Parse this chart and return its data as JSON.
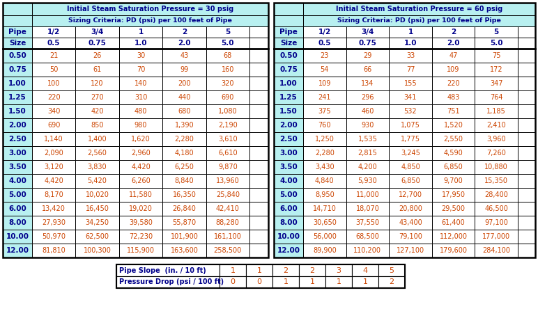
{
  "title_30": "Initial Steam Saturation Pressure = 30 psig",
  "title_60": "Initial Steam Saturation Pressure = 60 psig",
  "subtitle": "Sizing Criteria: PD (psi) per 100 feet of Pipe",
  "col_headers_top": [
    "1/2",
    "3/4",
    "1",
    "2",
    "5"
  ],
  "col_headers_bot": [
    "0.5",
    "0.75",
    "1.0",
    "2.0",
    "5.0"
  ],
  "pipe_sizes": [
    "0.50",
    "0.75",
    "1.00",
    "1.25",
    "1.50",
    "2.00",
    "2.50",
    "3.00",
    "3.50",
    "4.00",
    "5.00",
    "6.00",
    "8.00",
    "10.00",
    "12.00"
  ],
  "data_30": [
    [
      "21",
      "26",
      "30",
      "43",
      "68"
    ],
    [
      "50",
      "61",
      "70",
      "99",
      "160"
    ],
    [
      "100",
      "120",
      "140",
      "200",
      "320"
    ],
    [
      "220",
      "270",
      "310",
      "440",
      "690"
    ],
    [
      "340",
      "420",
      "480",
      "680",
      "1,080"
    ],
    [
      "690",
      "850",
      "980",
      "1,390",
      "2,190"
    ],
    [
      "1,140",
      "1,400",
      "1,620",
      "2,280",
      "3,610"
    ],
    [
      "2,090",
      "2,560",
      "2,960",
      "4,180",
      "6,610"
    ],
    [
      "3,120",
      "3,830",
      "4,420",
      "6,250",
      "9,870"
    ],
    [
      "4,420",
      "5,420",
      "6,260",
      "8,840",
      "13,960"
    ],
    [
      "8,170",
      "10,020",
      "11,580",
      "16,350",
      "25,840"
    ],
    [
      "13,420",
      "16,450",
      "19,020",
      "26,840",
      "42,410"
    ],
    [
      "27,930",
      "34,250",
      "39,580",
      "55,870",
      "88,280"
    ],
    [
      "50,970",
      "62,500",
      "72,230",
      "101,900",
      "161,100"
    ],
    [
      "81,810",
      "100,300",
      "115,900",
      "163,600",
      "258,500"
    ]
  ],
  "data_60": [
    [
      "23",
      "29",
      "33",
      "47",
      "75"
    ],
    [
      "54",
      "66",
      "77",
      "109",
      "172"
    ],
    [
      "109",
      "134",
      "155",
      "220",
      "347"
    ],
    [
      "241",
      "296",
      "341",
      "483",
      "764"
    ],
    [
      "375",
      "460",
      "532",
      "751",
      "1,185"
    ],
    [
      "760",
      "930",
      "1,075",
      "1,520",
      "2,410"
    ],
    [
      "1,250",
      "1,535",
      "1,775",
      "2,550",
      "3,960"
    ],
    [
      "2,280",
      "2,815",
      "3,245",
      "4,590",
      "7,260"
    ],
    [
      "3,430",
      "4,200",
      "4,850",
      "6,850",
      "10,880"
    ],
    [
      "4,840",
      "5,930",
      "6,850",
      "9,700",
      "15,350"
    ],
    [
      "8,950",
      "11,000",
      "12,700",
      "17,950",
      "28,400"
    ],
    [
      "14,710",
      "18,070",
      "20,800",
      "29,500",
      "46,500"
    ],
    [
      "30,650",
      "37,550",
      "43,400",
      "61,400",
      "97,100"
    ],
    [
      "56,000",
      "68,500",
      "79,100",
      "112,000",
      "177,000"
    ],
    [
      "89,900",
      "110,200",
      "127,100",
      "179,600",
      "284,100"
    ]
  ],
  "bottom_labels": [
    "Pipe Slope  (in. / 10 ft)",
    "Pressure Drop (psi / 100 ft)"
  ],
  "bottom_values_slope": [
    "1",
    "1",
    "2",
    "2",
    "3",
    "4",
    "5"
  ],
  "bottom_values_drop": [
    "0",
    "0",
    "1",
    "1",
    "1",
    "1",
    "2"
  ],
  "header_bg": "#b8f0f0",
  "pipe_col_bg": "#b8f0f0",
  "data_bg": "#ffffff",
  "border_color": "#000000",
  "navy": "#00008B",
  "orange": "#cc4400",
  "fig_w": 7.72,
  "fig_h": 4.57,
  "dpi": 100
}
